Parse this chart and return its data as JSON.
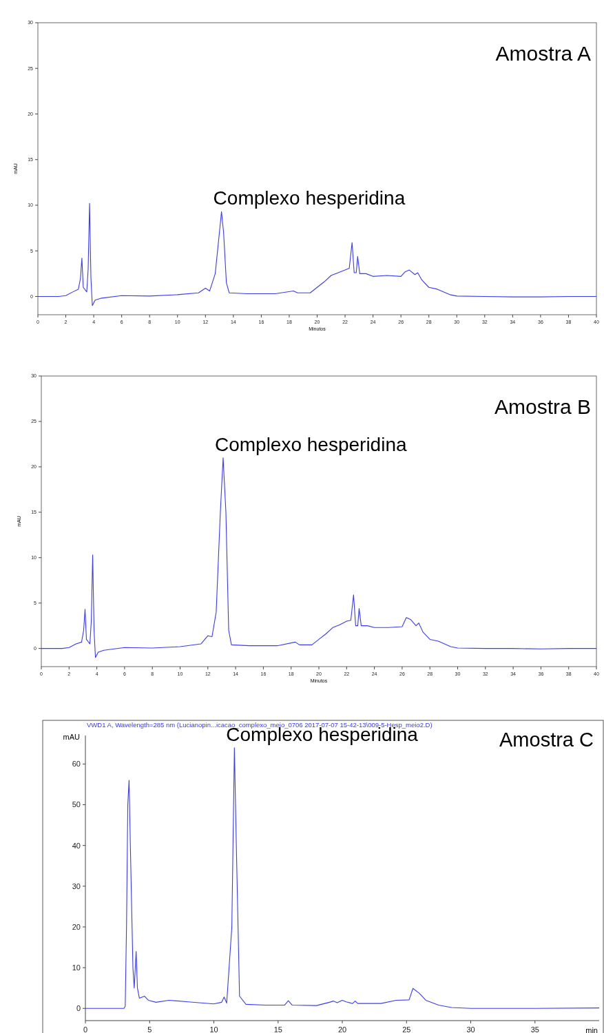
{
  "chart_data": [
    {
      "type": "line",
      "title": "Amostra A",
      "xlabel": "Minutos",
      "ylabel": "mAU",
      "xlim": [
        0,
        40
      ],
      "ylim": [
        -2,
        30
      ],
      "xticks": [
        0,
        2,
        4,
        6,
        8,
        10,
        12,
        14,
        16,
        18,
        20,
        22,
        24,
        26,
        28,
        30,
        32,
        34,
        36,
        38,
        40
      ],
      "yticks": [
        0,
        5,
        10,
        15,
        20,
        25,
        30
      ],
      "grid": false,
      "annotations": [
        {
          "text": "Complexo hesperidina",
          "x": 13.15,
          "y": 9.3
        }
      ],
      "series": [
        {
          "color": "#3a3af5",
          "x": [
            0,
            1.5,
            2,
            2.5,
            2.9,
            3.05,
            3.15,
            3.25,
            3.5,
            3.6,
            3.7,
            3.8,
            3.9,
            4.1,
            4.5,
            6,
            8,
            10,
            11.5,
            12,
            12.3,
            12.7,
            13,
            13.15,
            13.3,
            13.5,
            13.7,
            15,
            17,
            18.3,
            18.6,
            19.5,
            20,
            20.5,
            21,
            21.5,
            22,
            22.3,
            22.5,
            22.65,
            22.8,
            22.9,
            23.05,
            23.5,
            24,
            25,
            26,
            26.3,
            26.6,
            27,
            27.2,
            27.5,
            28,
            28.6,
            29.5,
            30,
            32,
            34,
            36,
            38,
            40
          ],
          "values": [
            0,
            0,
            0.1,
            0.5,
            0.8,
            2,
            4.2,
            1,
            0.5,
            3,
            10.2,
            2,
            -1,
            -0.4,
            -0.2,
            0.1,
            0.05,
            0.2,
            0.4,
            0.9,
            0.6,
            2.5,
            7,
            9.3,
            7,
            1.5,
            0.4,
            0.3,
            0.3,
            0.6,
            0.4,
            0.4,
            1,
            1.6,
            2.3,
            2.6,
            2.9,
            3.1,
            5.9,
            2.6,
            2.6,
            4.4,
            2.5,
            2.5,
            2.2,
            2.3,
            2.2,
            2.7,
            2.9,
            2.4,
            2.6,
            1.8,
            1,
            0.8,
            0.2,
            0.05,
            0,
            -0.05,
            -0.05,
            0,
            0
          ]
        }
      ]
    },
    {
      "type": "line",
      "title": "Amostra B",
      "xlabel": "Minutos",
      "ylabel": "mAU",
      "xlim": [
        0,
        40
      ],
      "ylim": [
        -2,
        30
      ],
      "xticks": [
        0,
        2,
        4,
        6,
        8,
        10,
        12,
        14,
        16,
        18,
        20,
        22,
        24,
        26,
        28,
        30,
        32,
        34,
        36,
        38,
        40
      ],
      "yticks": [
        0,
        5,
        10,
        15,
        20,
        25,
        30
      ],
      "grid": false,
      "annotations": [
        {
          "text": "Complexo hesperidina",
          "x": 13.1,
          "y": 21
        }
      ],
      "series": [
        {
          "color": "#3a3af5",
          "x": [
            0,
            1.5,
            2,
            2.5,
            2.9,
            3.05,
            3.15,
            3.25,
            3.5,
            3.6,
            3.7,
            3.8,
            3.9,
            4.1,
            4.5,
            6,
            8,
            10,
            11.5,
            12,
            12.3,
            12.6,
            12.9,
            13.1,
            13.3,
            13.5,
            13.7,
            15,
            17,
            18.3,
            18.6,
            19.5,
            20,
            20.5,
            21,
            21.5,
            22,
            22.3,
            22.5,
            22.65,
            22.8,
            22.9,
            23.05,
            23.5,
            24,
            25,
            26,
            26.3,
            26.6,
            27,
            27.2,
            27.5,
            28,
            28.6,
            29.5,
            30,
            32,
            34,
            36,
            38,
            40
          ],
          "values": [
            0,
            0,
            0.1,
            0.5,
            0.7,
            2,
            4.3,
            1,
            0.5,
            3,
            10.3,
            2,
            -1,
            -0.4,
            -0.2,
            0.1,
            0.05,
            0.2,
            0.5,
            1.4,
            1.3,
            4,
            15,
            21,
            15,
            2,
            0.4,
            0.3,
            0.3,
            0.7,
            0.4,
            0.4,
            1,
            1.6,
            2.3,
            2.6,
            3,
            3.1,
            5.9,
            2.5,
            2.5,
            4.4,
            2.5,
            2.5,
            2.3,
            2.3,
            2.4,
            3.4,
            3.2,
            2.5,
            2.8,
            1.8,
            1,
            0.8,
            0.2,
            0.05,
            0,
            0,
            -0.05,
            0,
            0
          ]
        }
      ]
    },
    {
      "type": "line",
      "title": "Amostra C",
      "subtitle": "VWD1 A, Wavelength=285 nm (Lucianopin...icacao_complexo_meio_0706 2017-07-07 15-42-13\\009-5-Hesp_meio2.D)",
      "xlabel": "min",
      "ylabel": "mAU",
      "xlim": [
        0,
        40
      ],
      "ylim": [
        -3,
        67
      ],
      "xticks": [
        0,
        5,
        10,
        15,
        20,
        25,
        30,
        35
      ],
      "yticks": [
        0,
        10,
        20,
        30,
        40,
        50,
        60
      ],
      "grid": false,
      "annotations": [
        {
          "text": "Complexo hesperidina",
          "x": 11.6,
          "y": 64
        }
      ],
      "series": [
        {
          "color": "#3a3af5",
          "x": [
            0,
            3,
            3.1,
            3.2,
            3.3,
            3.4,
            3.5,
            3.7,
            3.8,
            3.95,
            4.05,
            4.2,
            4.6,
            4.9,
            5.5,
            6.5,
            8,
            10,
            10.6,
            10.8,
            11,
            11.4,
            11.6,
            11.75,
            12,
            12.5,
            14,
            15.5,
            15.8,
            16.1,
            18,
            19,
            19.3,
            19.6,
            20,
            20.3,
            20.8,
            21,
            21.2,
            23,
            24.2,
            25.2,
            25.5,
            26,
            26.5,
            27.5,
            28.5,
            30,
            35,
            40
          ],
          "values": [
            0,
            0,
            0.5,
            20,
            50,
            56,
            40,
            10,
            5,
            14,
            5,
            2.5,
            3,
            2,
            1.5,
            2,
            1.6,
            1.1,
            1.5,
            2.8,
            1.3,
            20,
            64,
            40,
            3,
            1,
            0.8,
            0.8,
            1.9,
            0.8,
            0.7,
            1.5,
            1.8,
            1.4,
            2,
            1.6,
            1.2,
            1.8,
            1.2,
            1.2,
            2,
            2.1,
            4.9,
            3.7,
            2,
            0.8,
            0.2,
            0,
            0,
            0.1
          ]
        }
      ]
    }
  ]
}
